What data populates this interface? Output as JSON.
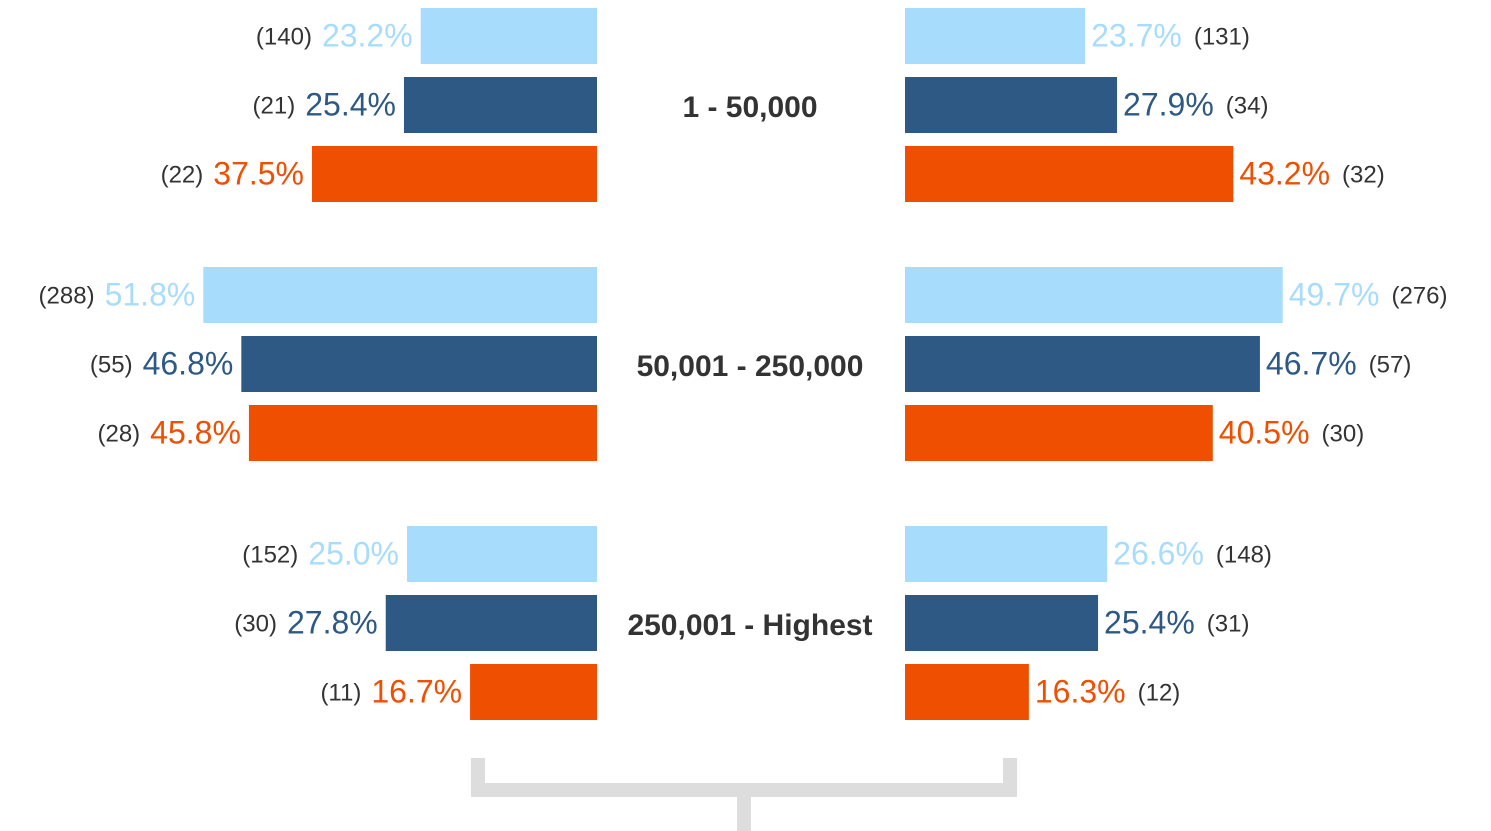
{
  "chart_data": {
    "type": "butterfly",
    "categories": [
      "1 - 50,000",
      "50,001 - 250,000",
      "250,001 - Highest"
    ],
    "panels": [
      {
        "side": "left",
        "series": [
          {
            "color": "#a8dcfd",
            "values": [
              23.2,
              51.8,
              25.0
            ],
            "value_labels": [
              "23.2%",
              "51.8%",
              "25.0%"
            ],
            "count_labels": [
              "(140)",
              "(288)",
              "(152)"
            ]
          },
          {
            "color": "#2e5984",
            "values": [
              25.4,
              46.8,
              27.8
            ],
            "value_labels": [
              "25.4%",
              "46.8%",
              "27.8%"
            ],
            "count_labels": [
              "(21)",
              "(55)",
              "(30)"
            ]
          },
          {
            "color": "#ef4f00",
            "values": [
              37.5,
              45.8,
              16.7
            ],
            "value_labels": [
              "37.5%",
              "45.8%",
              "16.7%"
            ],
            "count_labels": [
              "(22)",
              "(28)",
              "(11)"
            ]
          }
        ]
      },
      {
        "side": "right",
        "series": [
          {
            "color": "#a8dcfd",
            "values": [
              23.7,
              49.7,
              26.6
            ],
            "value_labels": [
              "23.7%",
              "49.7%",
              "26.6%"
            ],
            "count_labels": [
              "(131)",
              "(276)",
              "(148)"
            ]
          },
          {
            "color": "#2e5984",
            "values": [
              27.9,
              46.7,
              25.4
            ],
            "value_labels": [
              "27.9%",
              "46.7%",
              "25.4%"
            ],
            "count_labels": [
              "(34)",
              "(57)",
              "(31)"
            ]
          },
          {
            "color": "#ef4f00",
            "values": [
              43.2,
              40.5,
              16.3
            ],
            "value_labels": [
              "43.2%",
              "40.5%",
              "16.3%"
            ],
            "count_labels": [
              "(32)",
              "(30)",
              "(12)"
            ]
          }
        ]
      }
    ]
  }
}
